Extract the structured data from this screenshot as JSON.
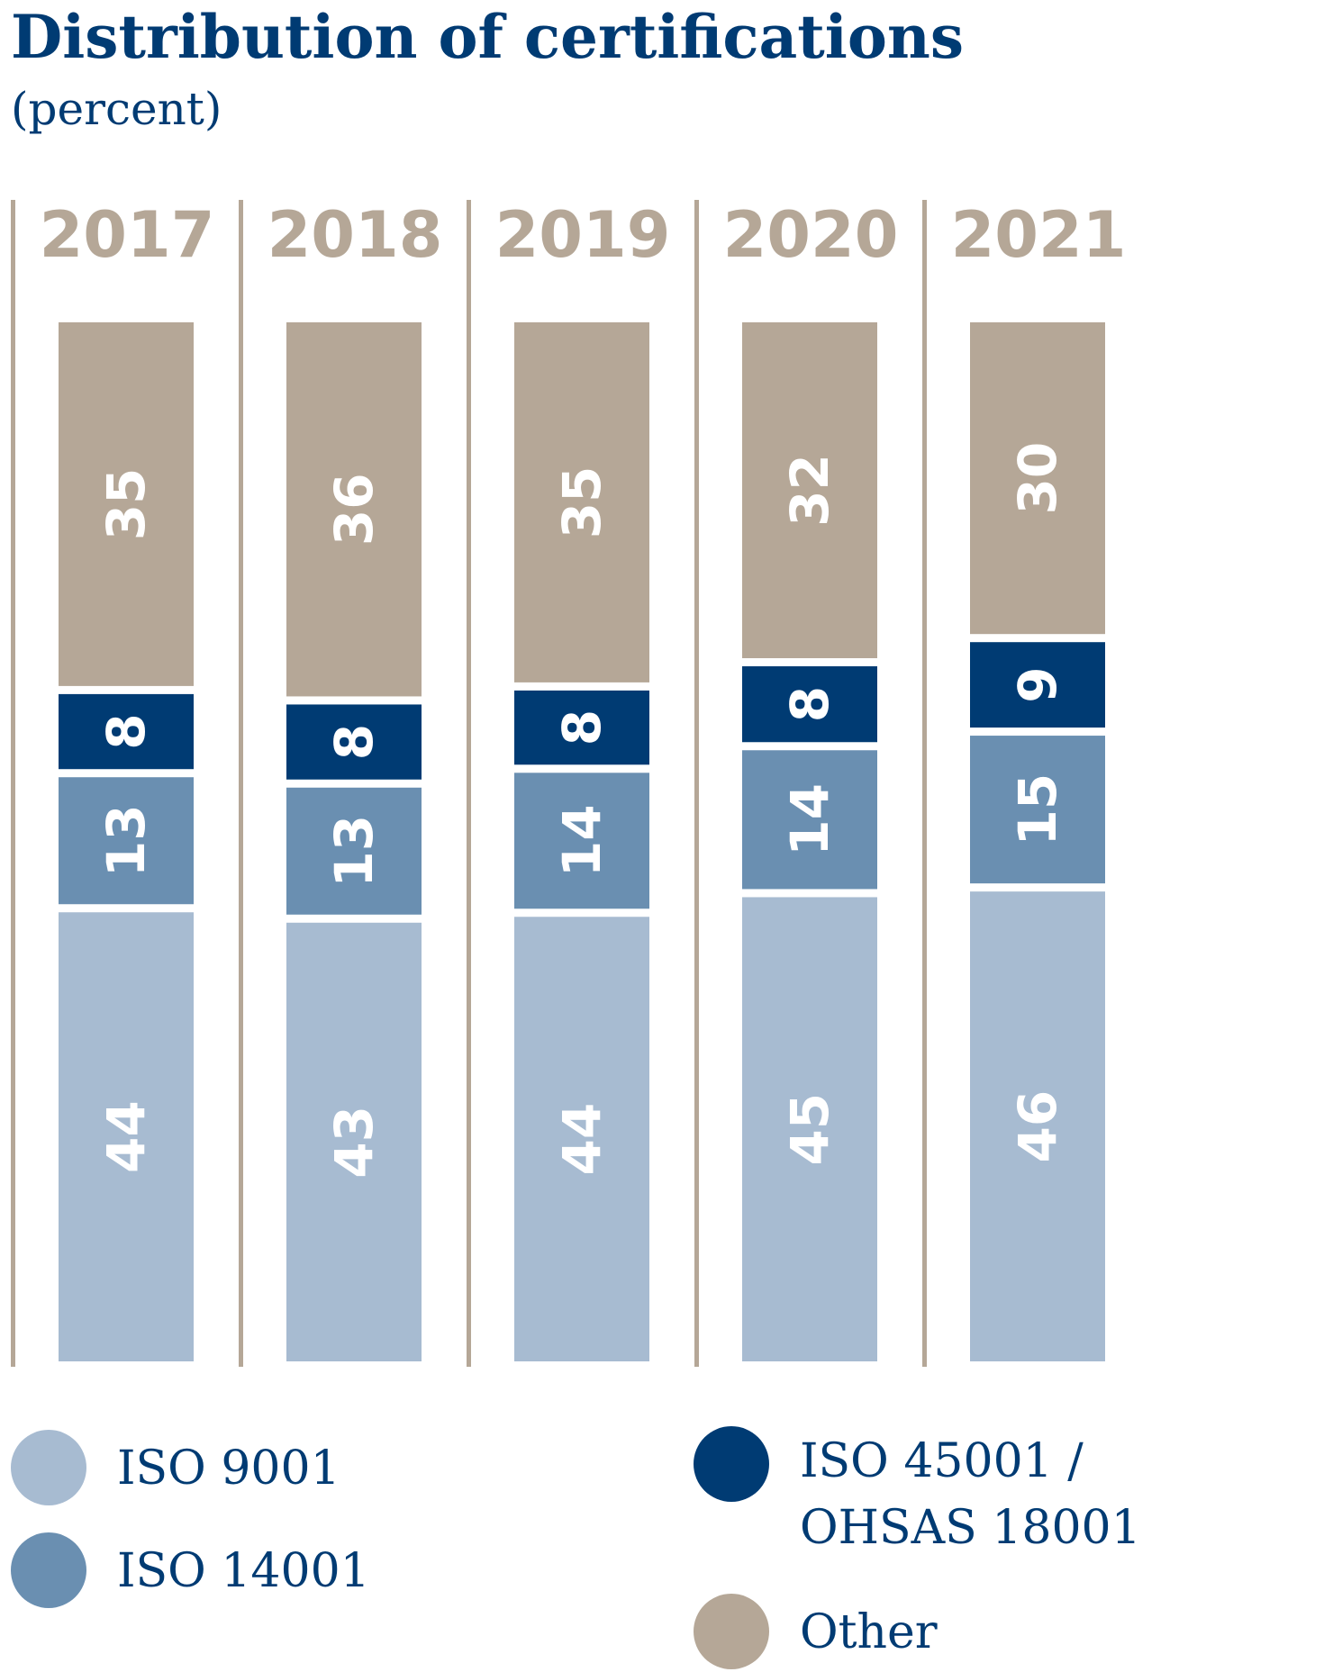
{
  "title": "Distribution of certifications",
  "subtitle": "(percent)",
  "chart_data": {
    "type": "bar",
    "stacked": true,
    "orientation": "vertical",
    "categories": [
      "2017",
      "2018",
      "2019",
      "2020",
      "2021"
    ],
    "series": [
      {
        "name": "ISO 9001",
        "values": [
          44,
          43,
          44,
          45,
          46
        ],
        "color": "#a7bbd1"
      },
      {
        "name": "ISO 14001",
        "values": [
          13,
          13,
          14,
          14,
          15
        ],
        "color": "#6a8fb1"
      },
      {
        "name": "ISO 45001 / OHSAS 18001",
        "values": [
          8,
          8,
          8,
          8,
          9
        ],
        "color": "#003b73"
      },
      {
        "name": "Other",
        "values": [
          35,
          36,
          35,
          32,
          30
        ],
        "color": "#b5a797"
      }
    ],
    "ylim": [
      0,
      100
    ],
    "grid": false,
    "legend_position": "bottom",
    "category_label_color": "#b5a797",
    "separator_color": "#b5a797"
  },
  "legend": {
    "iso9001": "ISO 9001",
    "iso14001": "ISO 14001",
    "iso45001_line1": "ISO 45001 /",
    "iso45001_line2": "OHSAS 18001",
    "other": "Other"
  }
}
